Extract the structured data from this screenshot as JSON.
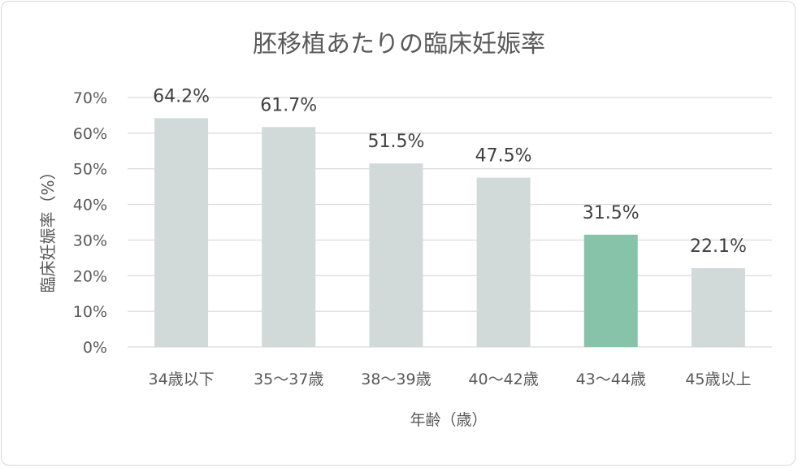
{
  "chart_data": {
    "type": "bar",
    "title": "胚移植あたりの臨床妊娠率",
    "xlabel": "年齢（歳）",
    "ylabel": "臨床妊娠率（%）",
    "categories": [
      "34歳以下",
      "35〜37歳",
      "38〜39歳",
      "40〜42歳",
      "43〜44歳",
      "45歳以上"
    ],
    "values": [
      64.2,
      61.7,
      51.5,
      47.5,
      31.5,
      22.1
    ],
    "value_labels": [
      "64.2%",
      "61.7%",
      "51.5%",
      "47.5%",
      "31.5%",
      "22.1%"
    ],
    "y_ticks": [
      0,
      10,
      20,
      30,
      40,
      50,
      60,
      70
    ],
    "y_tick_labels": [
      "0%",
      "10%",
      "20%",
      "30%",
      "40%",
      "50%",
      "60%",
      "70%"
    ],
    "ylim": [
      0,
      70
    ],
    "grid": true,
    "legend": "none",
    "highlight_index": 4,
    "colors": {
      "bar": "#d2d9d9",
      "highlight": "#86c3a8",
      "grid": "#d9d9d9",
      "text": "#595959",
      "label": "#404040"
    }
  }
}
